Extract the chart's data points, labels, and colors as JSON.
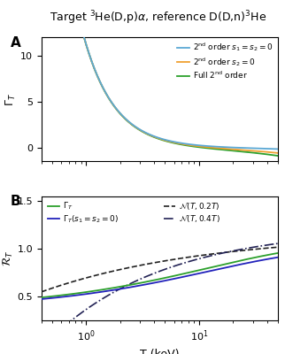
{
  "title": "Target $^{3}$He(D,p)$\\alpha$, reference D(D,n)$^{3}$He",
  "title_fontsize": 9.0,
  "panel_A_label": "A",
  "panel_B_label": "B",
  "T_min": 0.4,
  "T_max": 50,
  "T_points": 600,
  "panel_A": {
    "ylim": [
      -1.5,
      12
    ],
    "yticks": [
      0,
      5,
      10
    ],
    "ylabel": "$\\Gamma_T$",
    "legend_labels": [
      "2$^{\\mathrm{nd}}$ order $s_1 = s_2 = 0$",
      "2$^{\\mathrm{nd}}$ order $s_2 = 0$",
      "Full 2$^{\\mathrm{nd}}$ order"
    ],
    "colors": [
      "#5aa8d4",
      "#f0a030",
      "#2ca02c"
    ]
  },
  "panel_B": {
    "ylim": [
      0.25,
      1.55
    ],
    "yticks": [
      0.5,
      1.0,
      1.5
    ],
    "ylabel": "$\\mathcal{R}_T$",
    "xlabel": "T (keV)",
    "legend_labels_left": [
      "$\\Gamma_T$",
      "$\\Gamma_T(s_1 = s_2 = 0)$"
    ],
    "legend_labels_right": [
      "$\\mathcal{N}(T,0.2T)$",
      "$\\mathcal{N}(T,0.4T)$"
    ],
    "colors_solid": [
      "#2ca02c",
      "#2222bb"
    ],
    "color_dashed": "#222222",
    "color_dashdot": "#222255"
  }
}
